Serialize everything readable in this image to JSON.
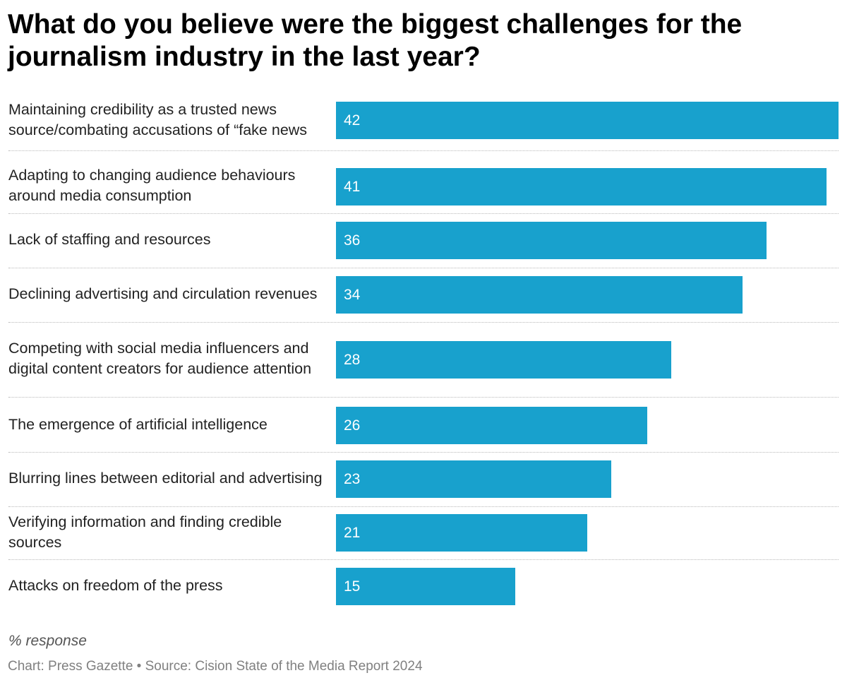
{
  "chart_data": {
    "type": "bar",
    "orientation": "horizontal",
    "title": "What do you believe were the biggest challenges for the journalism industry in the last year?",
    "categories": [
      "Maintaining credibility as a trusted news source/combating accusations of “fake news",
      "Adapting to changing audience behaviours around media consumption",
      "Lack of staffing and resources",
      "Declining advertising and circulation revenues",
      "Competing with social media influencers and digital content creators for audience attention",
      "The emergence of artificial intelligence",
      "Blurring lines between editorial and advertising",
      "Verifying information and finding credible sources",
      "Attacks on freedom of the press"
    ],
    "values": [
      42,
      41,
      36,
      34,
      28,
      26,
      23,
      21,
      15
    ],
    "xlim": [
      0,
      42
    ],
    "data_labels": "inside-bar-start",
    "grid": false,
    "bar_color": "#18a1cd",
    "notes": "% response",
    "footer": "Chart: Press Gazette • Source: Cision State of the Media Report 2024"
  }
}
